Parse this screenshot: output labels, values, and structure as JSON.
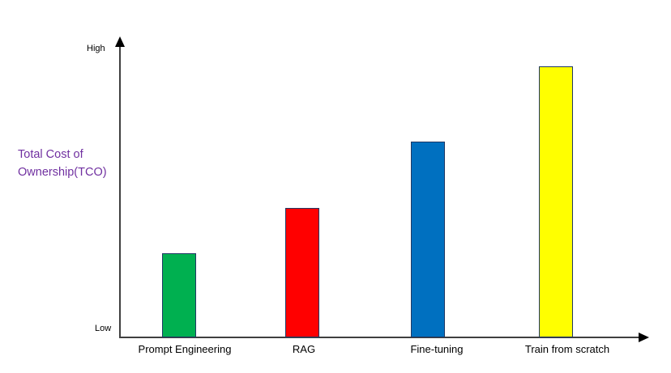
{
  "chart_data": {
    "type": "bar",
    "title": "",
    "categories": [
      "Prompt Engineering",
      "RAG",
      "Fine-tuning",
      "Train from scratch"
    ],
    "values": [
      28,
      43,
      65,
      90
    ],
    "value_note": "qualitative axis from Low to High, values are relative 0-100 estimates read from bar heights",
    "bar_colors": [
      "#00B050",
      "#FF0000",
      "#0070C0",
      "#FFFF00"
    ],
    "bar_border_color": "#1F3864",
    "xlabel": "",
    "ylabel": "Total Cost of Ownership(TCO)",
    "y_axis_ticks": [
      "Low",
      "High"
    ],
    "ylim": [
      0,
      100
    ],
    "grid": false,
    "legend": "none"
  },
  "labels": {
    "high": "High",
    "low": "Low",
    "ylabel_line1": "Total Cost of",
    "ylabel_line2": "Ownership(TCO)"
  },
  "colors": {
    "ylabel_text": "#7030A0",
    "axis_line": "#404040",
    "arrowhead": "#000000",
    "text": "#000000",
    "background": "#FFFFFF"
  }
}
